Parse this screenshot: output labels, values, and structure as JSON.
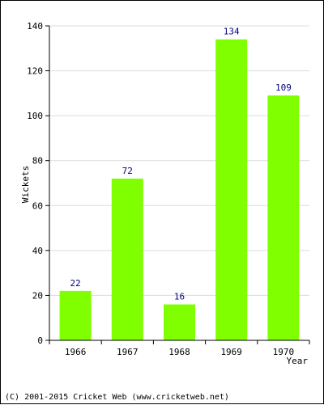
{
  "chart_data": {
    "type": "bar",
    "categories": [
      "1966",
      "1967",
      "1968",
      "1969",
      "1970"
    ],
    "values": [
      22,
      72,
      16,
      134,
      109
    ],
    "xlabel": "Year",
    "ylabel": "Wickets",
    "ylim": [
      0,
      140
    ],
    "yticks": [
      0,
      20,
      40,
      60,
      80,
      100,
      120,
      140
    ],
    "grid": true,
    "bar_color": "#80ff00",
    "value_label_color": "#000080"
  },
  "footer": {
    "copyright": "(C) 2001-2015 Cricket Web (www.cricketweb.net)"
  }
}
